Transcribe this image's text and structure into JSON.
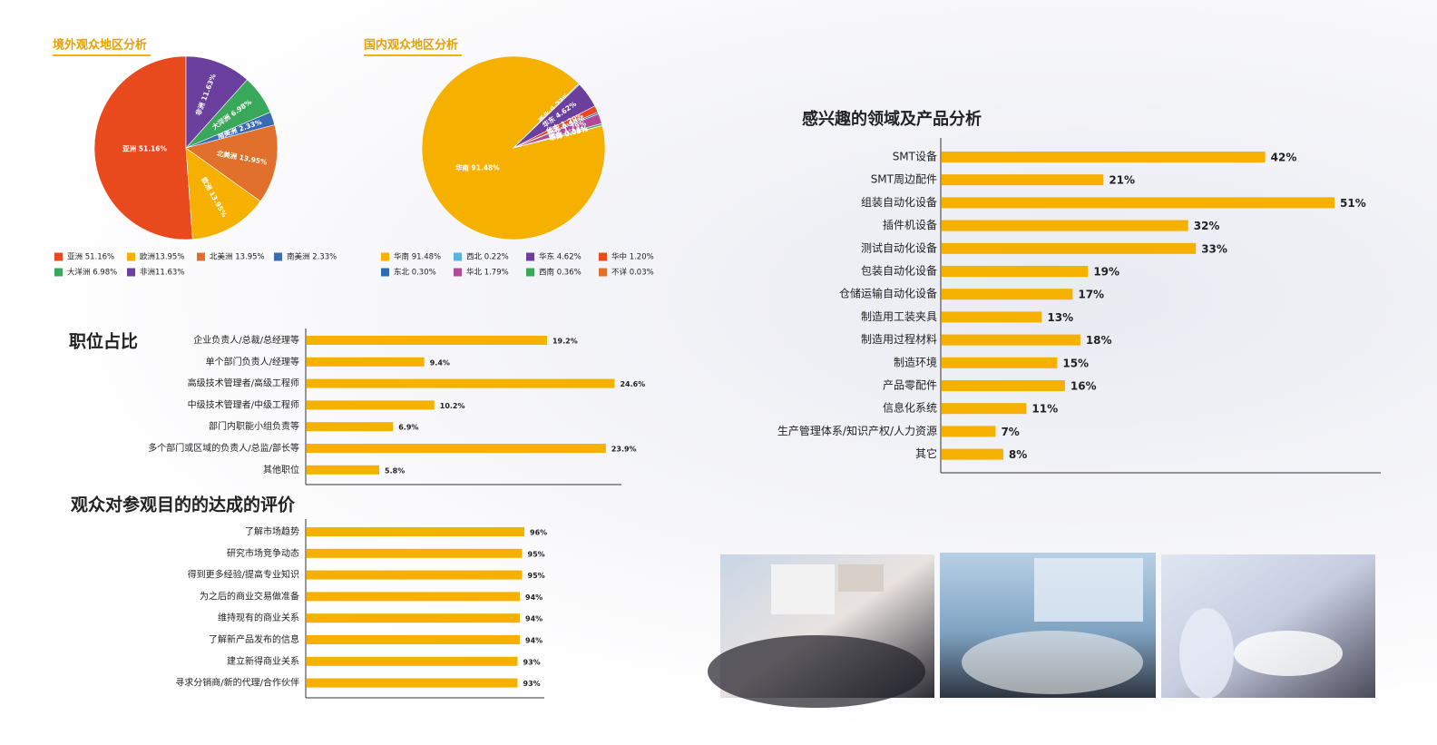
{
  "chart_data": [
    {
      "type": "pie",
      "title": "境外观众地区分析",
      "categories": [
        "亚洲",
        "欧洲",
        "北美洲",
        "南美洲",
        "大洋洲",
        "非洲"
      ],
      "values": [
        51.16,
        13.95,
        13.95,
        2.33,
        6.98,
        11.63
      ],
      "value_labels": [
        "亚洲 51.16%",
        "欧洲 13.95%",
        "北美洲 13.95%",
        "南美洲 2.33%",
        "大洋洲 6.98%",
        "非洲 11.63%"
      ],
      "legend_labels": [
        "亚洲 51.16%",
        "欧洲13.95%",
        "北美洲 13.95%",
        "南美洲 2.33%",
        "大洋洲 6.98%",
        "非洲11.63%"
      ],
      "colors": [
        "#e8491d",
        "#f5b000",
        "#e0702c",
        "#3a6cb4",
        "#3aa85a",
        "#6a3f9e"
      ]
    },
    {
      "type": "pie",
      "title": "国内观众地区分析",
      "categories": [
        "华南",
        "西北",
        "华东",
        "华中",
        "东北",
        "华北",
        "西南",
        "不详"
      ],
      "values": [
        91.48,
        0.22,
        4.62,
        1.2,
        0.3,
        1.79,
        0.36,
        0.03
      ],
      "value_labels": [
        "华南 91.48%",
        "西北 0.22%",
        "华东 4.62%",
        "华中 1.20%",
        "东北 0.30%",
        "华北 1.79%",
        "西南 0.36%",
        "不详 0.03%"
      ],
      "legend_labels": [
        "华南 91.48%",
        "西北 0.22%",
        "华东 4.62%",
        "华中 1.20%",
        "东北 0.30%",
        "华北 1.79%",
        "西南 0.36%",
        "不详 0.03%"
      ],
      "colors": [
        "#f5b000",
        "#5bb4df",
        "#6a3f9e",
        "#e8491d",
        "#2a6bb4",
        "#b04a98",
        "#3aa85a",
        "#e0702c"
      ]
    },
    {
      "type": "bar",
      "title": "职位占比",
      "categories": [
        "企业负责人/总裁/总经理等",
        "单个部门负责人/经理等",
        "高级技术管理者/高级工程师",
        "中级技术管理者/中级工程师",
        "部门内职能小组负责等",
        "多个部门或区域的负责人/总监/部长等",
        "其他职位"
      ],
      "values": [
        19.2,
        9.4,
        24.6,
        10.2,
        6.9,
        23.9,
        5.8
      ],
      "value_labels": [
        "19.2%",
        "9.4%",
        "24.6%",
        "10.2%",
        "6.9%",
        "23.9%",
        "5.8%"
      ],
      "color": "#f5b000",
      "xlim": [
        0,
        25
      ]
    },
    {
      "type": "bar",
      "title": "观众对参观目的的达成的评价",
      "categories": [
        "了解市场趋势",
        "研究市场竞争动态",
        "得到更多经验/提高专业知识",
        "为之后的商业交易做准备",
        "维持现有的商业关系",
        "了解新产品发布的信息",
        "建立新得商业关系",
        "寻求分销商/新的代理/合作伙伴"
      ],
      "values": [
        96,
        95,
        95,
        94,
        94,
        94,
        93,
        93
      ],
      "value_labels": [
        "96%",
        "95%",
        "95%",
        "94%",
        "94%",
        "94%",
        "93%",
        "93%"
      ],
      "color": "#f5b000",
      "xlim": [
        0,
        100
      ]
    },
    {
      "type": "bar",
      "title": "感兴趣的领域及产品分析",
      "categories": [
        "SMT设备",
        "SMT周边配件",
        "组装自动化设备",
        "插件机设备",
        "测试自动化设备",
        "包装自动化设备",
        "仓储运输自动化设备",
        "制造用工装夹具",
        "制造用过程材料",
        "制造环境",
        "产品零配件",
        "信息化系统",
        "生产管理体系/知识产权/人力资源",
        "其它"
      ],
      "values": [
        42,
        21,
        51,
        32,
        33,
        19,
        17,
        13,
        18,
        15,
        16,
        11,
        7,
        8
      ],
      "value_labels": [
        "42%",
        "21%",
        "51%",
        "32%",
        "33%",
        "19%",
        "17%",
        "13%",
        "18%",
        "15%",
        "16%",
        "11%",
        "7%",
        "8%"
      ],
      "color": "#f5b000",
      "xlim": [
        0,
        57
      ]
    }
  ]
}
